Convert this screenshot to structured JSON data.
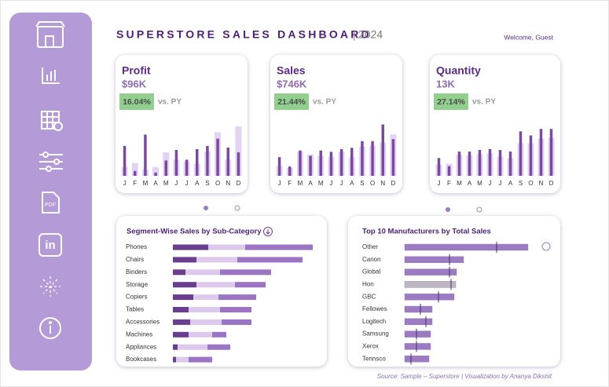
{
  "header": {
    "title": "SUPERSTORE SALES DASHBOARD",
    "year": "2024",
    "welcome": "Welcome, Guest"
  },
  "chart_data": [
    {
      "type": "bar",
      "title": "Profit",
      "value": "$96K",
      "change": "16.04%",
      "comparison": "vs. PY",
      "categories": [
        "J",
        "F",
        "M",
        "A",
        "M",
        "J",
        "J",
        "A",
        "S",
        "O",
        "N",
        "D"
      ],
      "series": [
        {
          "color": "#7b4a9e",
          "values": [
            37,
            6,
            51,
            4,
            19,
            32,
            20,
            33,
            37,
            46,
            35,
            29
          ]
        },
        {
          "color": "#e3d3f2",
          "values": [
            11,
            16,
            8,
            11,
            29,
            20,
            18,
            15,
            30,
            54,
            20,
            61
          ]
        }
      ],
      "ylim": [
        0,
        66
      ]
    },
    {
      "type": "bar",
      "title": "Sales",
      "value": "$746K",
      "change": "21.44%",
      "comparison": "vs. PY",
      "categories": [
        "J",
        "F",
        "M",
        "A",
        "M",
        "J",
        "J",
        "A",
        "S",
        "O",
        "N",
        "D"
      ],
      "series": [
        {
          "color": "#7b4a9e",
          "values": [
            28,
            14,
            38,
            30,
            38,
            36,
            40,
            42,
            52,
            52,
            77,
            55
          ]
        },
        {
          "color": "#e3d3f2",
          "values": [
            15,
            12,
            36,
            32,
            30,
            28,
            36,
            28,
            44,
            45,
            50,
            62
          ]
        }
      ],
      "ylim": [
        0,
        80
      ]
    },
    {
      "type": "bar",
      "title": "Quantity",
      "value": "13K",
      "change": "27.14%",
      "comparison": "vs. PY",
      "categories": [
        "J",
        "F",
        "M",
        "A",
        "M",
        "J",
        "J",
        "A",
        "S",
        "O",
        "N",
        "D"
      ],
      "series": [
        {
          "color": "#7b4a9e",
          "values": [
            22,
            12,
            30,
            30,
            32,
            33,
            32,
            30,
            55,
            50,
            58,
            58
          ]
        },
        {
          "color": "#e3d3f2",
          "values": [
            14,
            15,
            26,
            25,
            27,
            28,
            24,
            22,
            40,
            40,
            46,
            47
          ]
        }
      ],
      "ylim": [
        0,
        66
      ]
    },
    {
      "type": "stacked-barh",
      "title": "Segment-Wise Sales by Sub-Category",
      "categories": [
        "Phones",
        "Chairs",
        "Binders",
        "Storage",
        "Copiers",
        "Tables",
        "Accessories",
        "Machines",
        "Appliances",
        "Bookcases"
      ],
      "series": [
        {
          "color": "#6a3d8f",
          "values": [
            45,
            30,
            16,
            30,
            26,
            20,
            22,
            20,
            6,
            4
          ]
        },
        {
          "color": "#dcc9ec",
          "values": [
            47,
            52,
            44,
            49,
            32,
            40,
            40,
            30,
            38,
            16
          ]
        },
        {
          "color": "#9b74c3",
          "values": [
            86,
            83,
            65,
            39,
            48,
            40,
            38,
            18,
            29,
            30
          ]
        }
      ],
      "xlim": [
        0,
        180
      ]
    },
    {
      "type": "barh",
      "title": "Top 10 Manufacturers by Total Sales",
      "categories": [
        "Other",
        "Canon",
        "Global",
        "Hon",
        "GBC",
        "Fellowes",
        "Logitech",
        "Samsung",
        "Xerox",
        "Tennsco"
      ],
      "series": [
        {
          "color": "#9d7bc4",
          "colors": [
            "#9d7bc4",
            "#9d7bc4",
            "#9d7bc4",
            "#bdb6c2",
            "#9d7bc4",
            "#9d7bc4",
            "#9d7bc4",
            "#9d7bc4",
            "#9d7bc4",
            "#9d7bc4"
          ],
          "values": [
            157,
            75,
            66,
            65,
            63,
            35,
            35,
            33,
            33,
            31
          ]
        },
        {
          "color": "#4a2a6b",
          "values": [
            117,
            57,
            57,
            59,
            43,
            20,
            27,
            15,
            15,
            8
          ]
        }
      ],
      "xlim": [
        0,
        160
      ]
    }
  ],
  "footer": "Source: Sample – Superstore | Visualization by Ananya Dikshit"
}
